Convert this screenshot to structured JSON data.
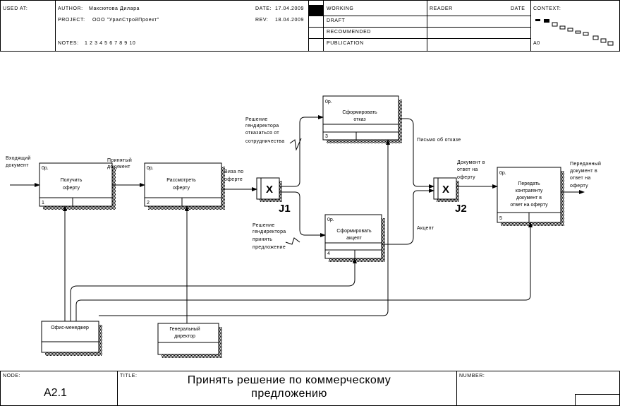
{
  "header": {
    "used_at_label": "USED AT:",
    "author_label": "AUTHOR:",
    "author": "Максютова Дилара",
    "project_label": "PROJECT:",
    "project": "ООО \"УралСтройПроект\"",
    "notes_label": "NOTES:",
    "notes": "1 2 3 4 5 6 7 8 9 10",
    "date_label": "DATE:",
    "date": "17.04.2009",
    "rev_label": "REV:",
    "rev": "18.04.2009",
    "status": [
      "WORKING",
      "DRAFT",
      "RECOMMENDED",
      "PUBLICATION"
    ],
    "reader_label": "READER",
    "reader_date_label": "DATE",
    "context_label": "CONTEXT:",
    "context_node": "A0"
  },
  "diagram": {
    "boxes": [
      {
        "id": "box-1",
        "text": [
          "Получить",
          "оферту"
        ],
        "num": "1",
        "tag": "0р."
      },
      {
        "id": "box-2",
        "text": [
          "Рассмотреть",
          "оферту"
        ],
        "num": "2",
        "tag": "0р."
      },
      {
        "id": "box-3",
        "text": [
          "Сформировать",
          "отказ"
        ],
        "num": "3",
        "tag": "0р."
      },
      {
        "id": "box-4",
        "text": [
          "Сформировать",
          "акцепт"
        ],
        "num": "4",
        "tag": "0р."
      },
      {
        "id": "box-5",
        "text": [
          "Передать",
          "контрагенту",
          "документ в",
          "ответ на оферту"
        ],
        "num": "5",
        "tag": "0р."
      }
    ],
    "junctions": [
      {
        "symbol": "X",
        "label": "J1"
      },
      {
        "symbol": "X",
        "label": "J2"
      }
    ],
    "mechanisms": [
      {
        "text": "Офис-менеджер"
      },
      {
        "text": [
          "Генеральный",
          "директор"
        ]
      }
    ],
    "arrow_labels": {
      "incoming": [
        "Входящий",
        "документ"
      ],
      "accepted": [
        "Принятый",
        "документ"
      ],
      "visa": [
        "Виза по",
        "оферте"
      ],
      "refuse_decision": [
        "Решение",
        "гендиректора",
        "отказаться от",
        "сотрудничества"
      ],
      "accept_decision": [
        "Решение",
        "гендиректора",
        "принять",
        "предложение"
      ],
      "refusal_letter": "Письмо об отказе",
      "acceptance": "Акцепт",
      "doc_response": [
        "Документ в",
        "ответ на",
        "оферту"
      ],
      "sent_doc": [
        "Переданный",
        "документ в",
        "ответ на",
        "оферту"
      ]
    }
  },
  "footer": {
    "node_label": "NODE:",
    "node": "A2.1",
    "title_label": "TITLE:",
    "title": [
      "Принять решение  по коммерческому",
      "предложению"
    ],
    "number_label": "NUMBER:"
  },
  "colors": {
    "line": "#000000",
    "shadow": "#000000"
  }
}
